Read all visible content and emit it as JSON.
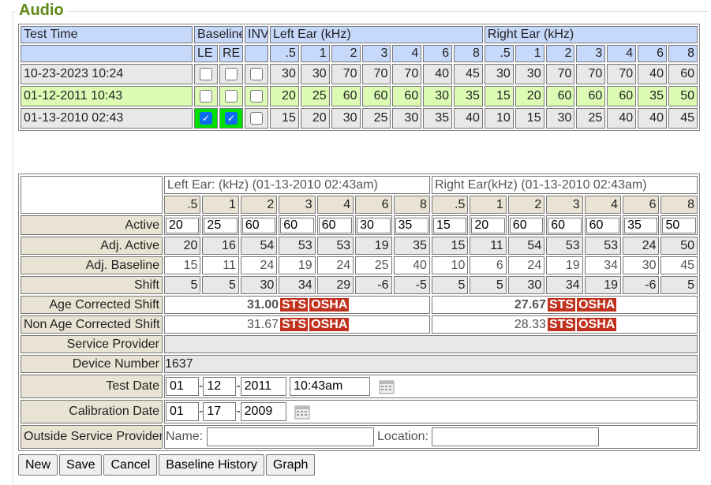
{
  "section_title": "Audio",
  "history": {
    "headers": {
      "test_time": "Test Time",
      "baseline": "Baseline",
      "inv": "INV",
      "left_ear": "Left Ear (kHz)",
      "right_ear": "Right Ear (kHz)",
      "le": "LE",
      "re": "RE"
    },
    "freqs": [
      ".5",
      "1",
      "2",
      "3",
      "4",
      "6",
      "8"
    ],
    "rows": [
      {
        "time": "10-23-2023 10:24",
        "le": false,
        "re": false,
        "inv": false,
        "left": [
          "30",
          "30",
          "70",
          "70",
          "70",
          "40",
          "45"
        ],
        "right": [
          "30",
          "30",
          "70",
          "70",
          "70",
          "40",
          "60"
        ],
        "selected": false
      },
      {
        "time": "01-12-2011 10:43",
        "le": false,
        "re": false,
        "inv": false,
        "left": [
          "20",
          "25",
          "60",
          "60",
          "60",
          "30",
          "35"
        ],
        "right": [
          "15",
          "20",
          "60",
          "60",
          "60",
          "35",
          "50"
        ],
        "selected": true
      },
      {
        "time": "01-13-2010 02:43",
        "le": true,
        "re": true,
        "inv": false,
        "left": [
          "15",
          "20",
          "30",
          "25",
          "30",
          "35",
          "40"
        ],
        "right": [
          "10",
          "15",
          "30",
          "25",
          "40",
          "40",
          "45"
        ],
        "selected": false
      }
    ]
  },
  "detail": {
    "left_header": "Left Ear: (kHz) (01-13-2010 02:43am)",
    "right_header": "Right Ear(kHz) (01-13-2010 02:43am)",
    "freqs": [
      ".5",
      "1",
      "2",
      "3",
      "4",
      "6",
      "8"
    ],
    "active": {
      "label": "Active",
      "left": [
        "20",
        "25",
        "60",
        "60",
        "60",
        "30",
        "35"
      ],
      "right": [
        "15",
        "20",
        "60",
        "60",
        "60",
        "35",
        "50"
      ]
    },
    "adj_active": {
      "label": "Adj. Active",
      "left": [
        "20",
        "16",
        "54",
        "53",
        "53",
        "19",
        "35"
      ],
      "right": [
        "15",
        "11",
        "54",
        "53",
        "53",
        "24",
        "50"
      ]
    },
    "adj_baseline": {
      "label": "Adj. Baseline",
      "left": [
        "15",
        "11",
        "24",
        "19",
        "24",
        "25",
        "40"
      ],
      "right": [
        "10",
        "6",
        "24",
        "19",
        "34",
        "30",
        "45"
      ]
    },
    "shift": {
      "label": "Shift",
      "left": [
        "5",
        "5",
        "30",
        "34",
        "29",
        "-6",
        "-5"
      ],
      "right": [
        "5",
        "5",
        "30",
        "34",
        "19",
        "-6",
        "5"
      ]
    },
    "age_corrected": {
      "label": "Age Corrected Shift",
      "left": "31.00",
      "right": "27.67",
      "badges": [
        "STS",
        "OSHA"
      ]
    },
    "non_age_corrected": {
      "label": "Non Age Corrected Shift",
      "left": "31.67",
      "right": "28.33",
      "badges": [
        "STS",
        "OSHA"
      ]
    },
    "service_provider": {
      "label": "Service Provider",
      "value": ""
    },
    "device_number": {
      "label": "Device Number",
      "value": "1637"
    },
    "test_date": {
      "label": "Test Date",
      "month": "01",
      "day": "12",
      "year": "2011",
      "time": "10:43am"
    },
    "calibration_date": {
      "label": "Calibration Date",
      "month": "01",
      "day": "17",
      "year": "2009"
    },
    "outside_provider": {
      "label": "Outside Service Provider",
      "name_label": "Name:",
      "name": "",
      "location_label": "Location:",
      "location": ""
    }
  },
  "colors": {
    "header": "#c6d9fb",
    "selected_row": "#dcfcb4",
    "baseline_checked": "#00e000",
    "badge": "#c0321e",
    "legend": "#5e8a1a"
  },
  "buttons": {
    "new": "New",
    "save": "Save",
    "cancel": "Cancel",
    "baseline_history": "Baseline History",
    "graph": "Graph"
  }
}
